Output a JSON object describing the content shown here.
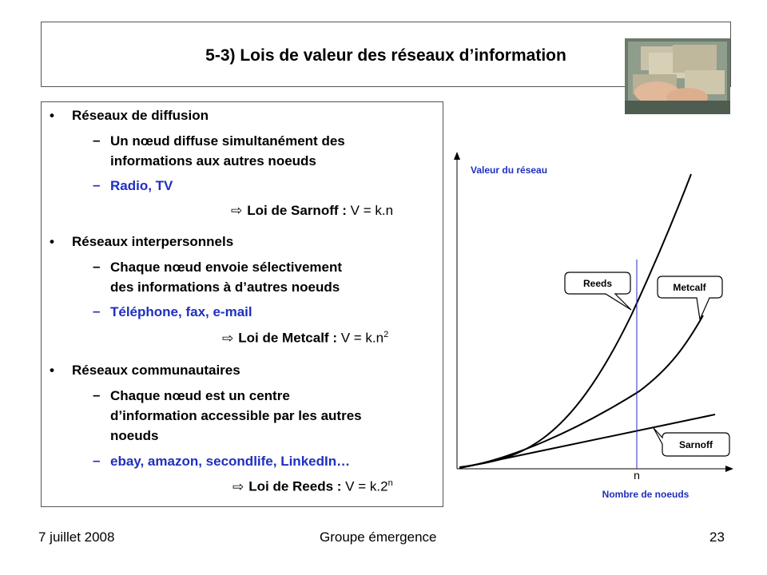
{
  "title": "5-3) Lois de valeur des réseaux d’information",
  "sections": [
    {
      "heading": "Réseaux de diffusion",
      "items": [
        "Un nœud diffuse simultanément des",
        "informations aux autres noeuds"
      ],
      "examples": "Radio, TV",
      "law_label": "Loi de Sarnoff :",
      "law_formula": "V = k.n",
      "law_sup": ""
    },
    {
      "heading": "Réseaux interpersonnels",
      "items": [
        "Chaque nœud envoie sélectivement",
        "des informations à d’autres noeuds"
      ],
      "examples": "Téléphone, fax, e-mail",
      "law_label": "Loi de Metcalf :",
      "law_formula": "V = k.n",
      "law_sup": "2"
    },
    {
      "heading": "Réseaux communautaires",
      "items": [
        "Chaque nœud est un centre",
        "d’information accessible par les autres",
        "noeuds"
      ],
      "examples": "ebay, amazon, secondlife, LinkedIn…",
      "law_label": "Loi de Reeds :",
      "law_formula": "V = k.2",
      "law_sup": "n"
    }
  ],
  "chart": {
    "ylabel": "Valeur du réseau",
    "xlabel": "Nombre de noeuds",
    "n_label": "n",
    "callouts": [
      "Reeds",
      "Metcalf",
      "Sarnoff"
    ],
    "colors": {
      "curves": "#000000",
      "marker": "#1f2fbf",
      "xlabel": "#1f2fbf",
      "ylabel": "#1f2fbf"
    }
  },
  "footer": {
    "date": "7 juillet 2008",
    "center": "Groupe émergence",
    "page": "23"
  },
  "icons": {
    "arrow": "outline-right-arrow-icon",
    "photo": "money-counting-photo"
  }
}
